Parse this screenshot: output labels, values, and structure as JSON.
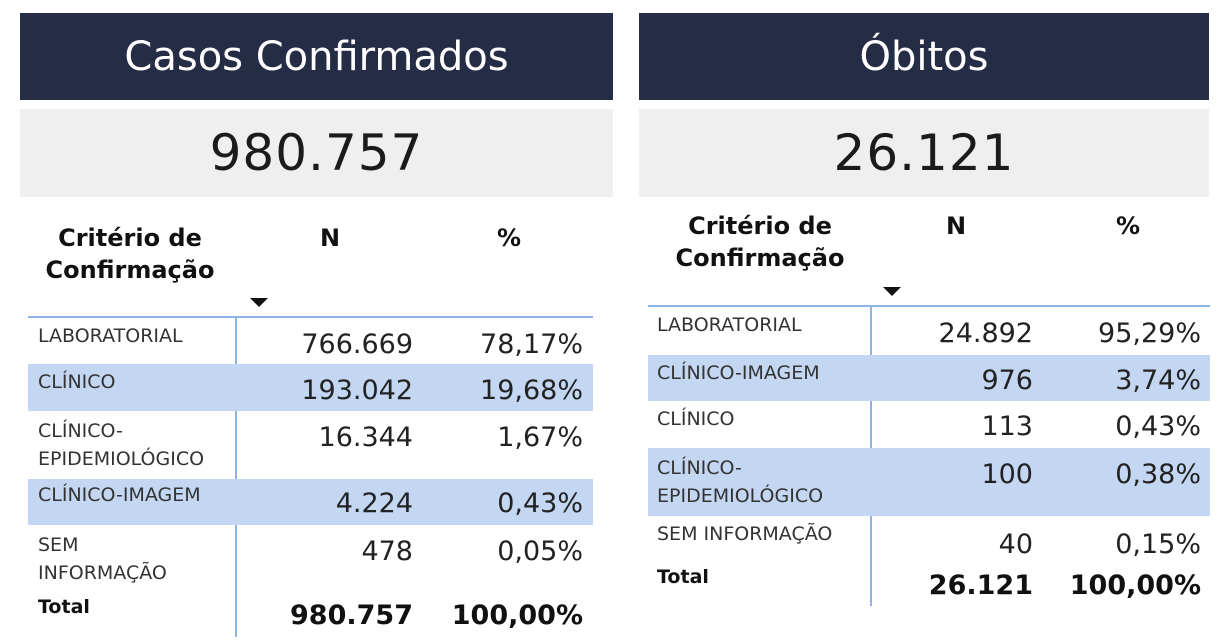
{
  "left": {
    "title": "Casos Confirmados",
    "kpi": "980.757",
    "columns": {
      "criterio_line1": "Critério de",
      "criterio_line2": "Confirmação",
      "n": "N",
      "pct": "%"
    },
    "rows": [
      {
        "cat_line1": "LABORATORIAL",
        "cat_line2": "",
        "n": "766.669",
        "pct": "78,17%"
      },
      {
        "cat_line1": "CLÍNICO",
        "cat_line2": "",
        "n": "193.042",
        "pct": "19,68%"
      },
      {
        "cat_line1": "CLÍNICO-",
        "cat_line2": "EPIDEMIOLÓGICO",
        "n": "16.344",
        "pct": "1,67%"
      },
      {
        "cat_line1": "CLÍNICO-IMAGEM",
        "cat_line2": "",
        "n": "4.224",
        "pct": "0,43%"
      },
      {
        "cat_line1": "SEM",
        "cat_line2": "INFORMAÇÃO",
        "n": "478",
        "pct": "0,05%"
      }
    ],
    "total": {
      "label": "Total",
      "n": "980.757",
      "pct": "100,00%"
    }
  },
  "right": {
    "title": "Óbitos",
    "kpi": "26.121",
    "columns": {
      "criterio_line1": "Critério de",
      "criterio_line2": "Confirmação",
      "n": "N",
      "pct": "%"
    },
    "rows": [
      {
        "cat_line1": "LABORATORIAL",
        "cat_line2": "",
        "n": "24.892",
        "pct": "95,29%"
      },
      {
        "cat_line1": "CLÍNICO-IMAGEM",
        "cat_line2": "",
        "n": "976",
        "pct": "3,74%"
      },
      {
        "cat_line1": "CLÍNICO",
        "cat_line2": "",
        "n": "113",
        "pct": "0,43%"
      },
      {
        "cat_line1": "CLÍNICO-",
        "cat_line2": "EPIDEMIOLÓGICO",
        "n": "100",
        "pct": "0,38%"
      },
      {
        "cat_line1": "SEM INFORMAÇÃO",
        "cat_line2": "",
        "n": "40",
        "pct": "0,15%"
      }
    ],
    "total": {
      "label": "Total",
      "n": "26.121",
      "pct": "100,00%"
    }
  },
  "colors": {
    "header_bg": "#252c45",
    "kpi_bg": "#efefef",
    "row_alt": "#c3d6f2",
    "grid_line": "#8fb3e6"
  }
}
